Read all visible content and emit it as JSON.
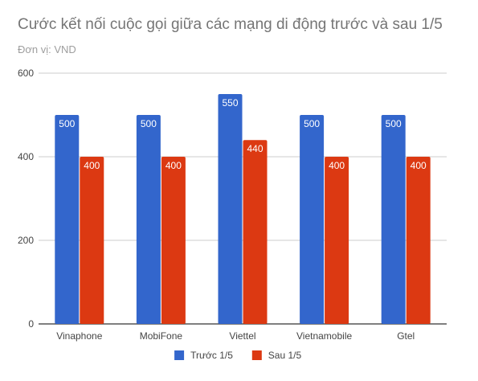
{
  "chart_data": {
    "type": "bar",
    "title": "Cước kết nối cuộc gọi giữa các mạng di động trước và sau 1/5",
    "subtitle": "Đơn vị: VND",
    "categories": [
      "Vinaphone",
      "MobiFone",
      "Viettel",
      "Vietnamobile",
      "Gtel"
    ],
    "series": [
      {
        "name": "Trước 1/5",
        "color": "#3366cc",
        "values": [
          500,
          500,
          550,
          500,
          500
        ]
      },
      {
        "name": "Sau 1/5",
        "color": "#dc3912",
        "values": [
          400,
          400,
          440,
          400,
          400
        ]
      }
    ],
    "yticks": [
      0,
      200,
      400,
      600
    ],
    "ylim": [
      0,
      600
    ],
    "xlabel": "",
    "ylabel": "",
    "grid": true,
    "legend_position": "bottom"
  }
}
